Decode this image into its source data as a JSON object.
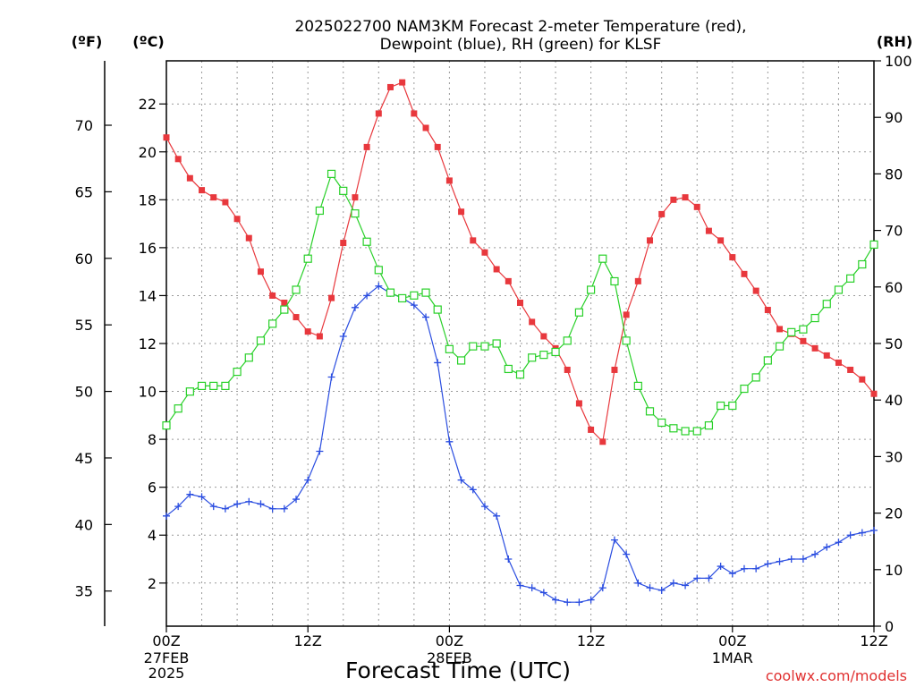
{
  "chart_data": {
    "type": "line",
    "title_line1": "2025022700 NAM3KM Forecast 2-meter Temperature (red),",
    "title_line2": "Dewpoint (blue), RH (green) for KLSF",
    "xlabel": "Forecast Time (UTC)",
    "credit": "coolwx.com/models",
    "axis_units": {
      "fahrenheit": "(ºF)",
      "celsius": "(ºC)",
      "rh": "(RH)"
    },
    "x_range_hours": [
      0,
      60
    ],
    "x_ticks": [
      {
        "hour": 0,
        "label": "00Z",
        "sub1": "27FEB",
        "sub2": "2025"
      },
      {
        "hour": 12,
        "label": "12Z",
        "sub1": "",
        "sub2": ""
      },
      {
        "hour": 24,
        "label": "00Z",
        "sub1": "28FEB",
        "sub2": ""
      },
      {
        "hour": 36,
        "label": "12Z",
        "sub1": "",
        "sub2": ""
      },
      {
        "hour": 48,
        "label": "00Z",
        "sub1": "1MAR",
        "sub2": ""
      },
      {
        "hour": 60,
        "label": "12Z",
        "sub1": "",
        "sub2": ""
      }
    ],
    "celsius_range": [
      0.2,
      23.8
    ],
    "celsius_ticks": [
      "2",
      "4",
      "6",
      "8",
      "10",
      "12",
      "14",
      "16",
      "18",
      "20",
      "22"
    ],
    "fahrenheit_ticks": [
      "35",
      "40",
      "45",
      "50",
      "55",
      "60",
      "65",
      "70"
    ],
    "rh_range": [
      0,
      100
    ],
    "rh_ticks": [
      "0",
      "10",
      "20",
      "30",
      "40",
      "50",
      "60",
      "70",
      "80",
      "90",
      "100"
    ],
    "grid": true,
    "series": [
      {
        "name": "Temperature",
        "color": "#e8383d",
        "marker": "filled-square",
        "units": "C",
        "x": [
          0,
          1,
          2,
          3,
          4,
          5,
          6,
          7,
          8,
          9,
          10,
          11,
          12,
          13,
          14,
          15,
          16,
          17,
          18,
          19,
          20,
          21,
          22,
          23,
          24,
          25,
          26,
          27,
          28,
          29,
          30,
          31,
          32,
          33,
          34,
          35,
          36,
          37,
          38,
          39,
          40,
          41,
          42,
          43,
          44,
          45,
          46,
          47,
          48,
          49,
          50,
          51,
          52,
          53,
          54,
          55,
          56,
          57,
          58,
          59,
          60
        ],
        "values": [
          20.6,
          19.7,
          18.9,
          18.4,
          18.1,
          17.9,
          17.2,
          16.4,
          15.0,
          14.0,
          13.7,
          13.1,
          12.5,
          12.3,
          13.9,
          16.2,
          18.1,
          20.2,
          21.6,
          22.7,
          22.9,
          21.6,
          21.0,
          20.2,
          18.8,
          17.5,
          16.3,
          15.8,
          15.1,
          14.6,
          13.7,
          12.9,
          12.3,
          11.8,
          10.9,
          9.5,
          8.4,
          7.9,
          10.9,
          13.2,
          14.6,
          16.3,
          17.4,
          18.0,
          18.1,
          17.7,
          16.7,
          16.3,
          15.6,
          14.9,
          14.2,
          13.4,
          12.6,
          12.4,
          12.1,
          11.8,
          11.5,
          11.2,
          10.9,
          10.5,
          9.9
        ]
      },
      {
        "name": "Dewpoint",
        "color": "#2a4de0",
        "marker": "plus",
        "units": "C",
        "x": [
          0,
          1,
          2,
          3,
          4,
          5,
          6,
          7,
          8,
          9,
          10,
          11,
          12,
          13,
          14,
          15,
          16,
          17,
          18,
          19,
          20,
          21,
          22,
          23,
          24,
          25,
          26,
          27,
          28,
          29,
          30,
          31,
          32,
          33,
          34,
          35,
          36,
          37,
          38,
          39,
          40,
          41,
          42,
          43,
          44,
          45,
          46,
          47,
          48,
          49,
          50,
          51,
          52,
          53,
          54,
          55,
          56,
          57,
          58,
          59,
          60
        ],
        "values": [
          4.8,
          5.2,
          5.7,
          5.6,
          5.2,
          5.1,
          5.3,
          5.4,
          5.3,
          5.1,
          5.1,
          5.5,
          6.3,
          7.5,
          10.6,
          12.3,
          13.5,
          14.0,
          14.4,
          14.1,
          13.9,
          13.6,
          13.1,
          11.2,
          7.9,
          6.3,
          5.9,
          5.2,
          4.8,
          3.0,
          1.9,
          1.8,
          1.6,
          1.3,
          1.2,
          1.2,
          1.3,
          1.8,
          3.8,
          3.2,
          2.0,
          1.8,
          1.7,
          2.0,
          1.9,
          2.2,
          2.2,
          2.7,
          2.4,
          2.6,
          2.6,
          2.8,
          2.9,
          3.0,
          3.0,
          3.2,
          3.5,
          3.7,
          4.0,
          4.1,
          4.2
        ]
      },
      {
        "name": "RH",
        "color": "#28d028",
        "marker": "open-square",
        "units": "%",
        "x": [
          0,
          1,
          2,
          3,
          4,
          5,
          6,
          7,
          8,
          9,
          10,
          11,
          12,
          13,
          14,
          15,
          16,
          17,
          18,
          19,
          20,
          21,
          22,
          23,
          24,
          25,
          26,
          27,
          28,
          29,
          30,
          31,
          32,
          33,
          34,
          35,
          36,
          37,
          38,
          39,
          40,
          41,
          42,
          43,
          44,
          45,
          46,
          47,
          48,
          49,
          50,
          51,
          52,
          53,
          54,
          55,
          56,
          57,
          58,
          59,
          60
        ],
        "values": [
          35.5,
          38.5,
          41.5,
          42.5,
          42.5,
          42.5,
          45.0,
          47.5,
          50.5,
          53.5,
          56.0,
          59.5,
          65.0,
          73.5,
          80.0,
          77.0,
          73.0,
          68.0,
          63.0,
          59.0,
          58.0,
          58.5,
          59.0,
          56.0,
          49.0,
          47.0,
          49.5,
          49.5,
          50.0,
          45.5,
          44.5,
          47.5,
          48.0,
          48.5,
          50.5,
          55.5,
          59.5,
          65.0,
          61.0,
          50.5,
          42.5,
          38.0,
          36.0,
          35.0,
          34.5,
          34.5,
          35.5,
          39.0,
          39.0,
          42.0,
          44.0,
          47.0,
          49.5,
          52.0,
          52.5,
          54.5,
          57.0,
          59.5,
          61.5,
          64.0,
          67.5
        ]
      }
    ]
  }
}
